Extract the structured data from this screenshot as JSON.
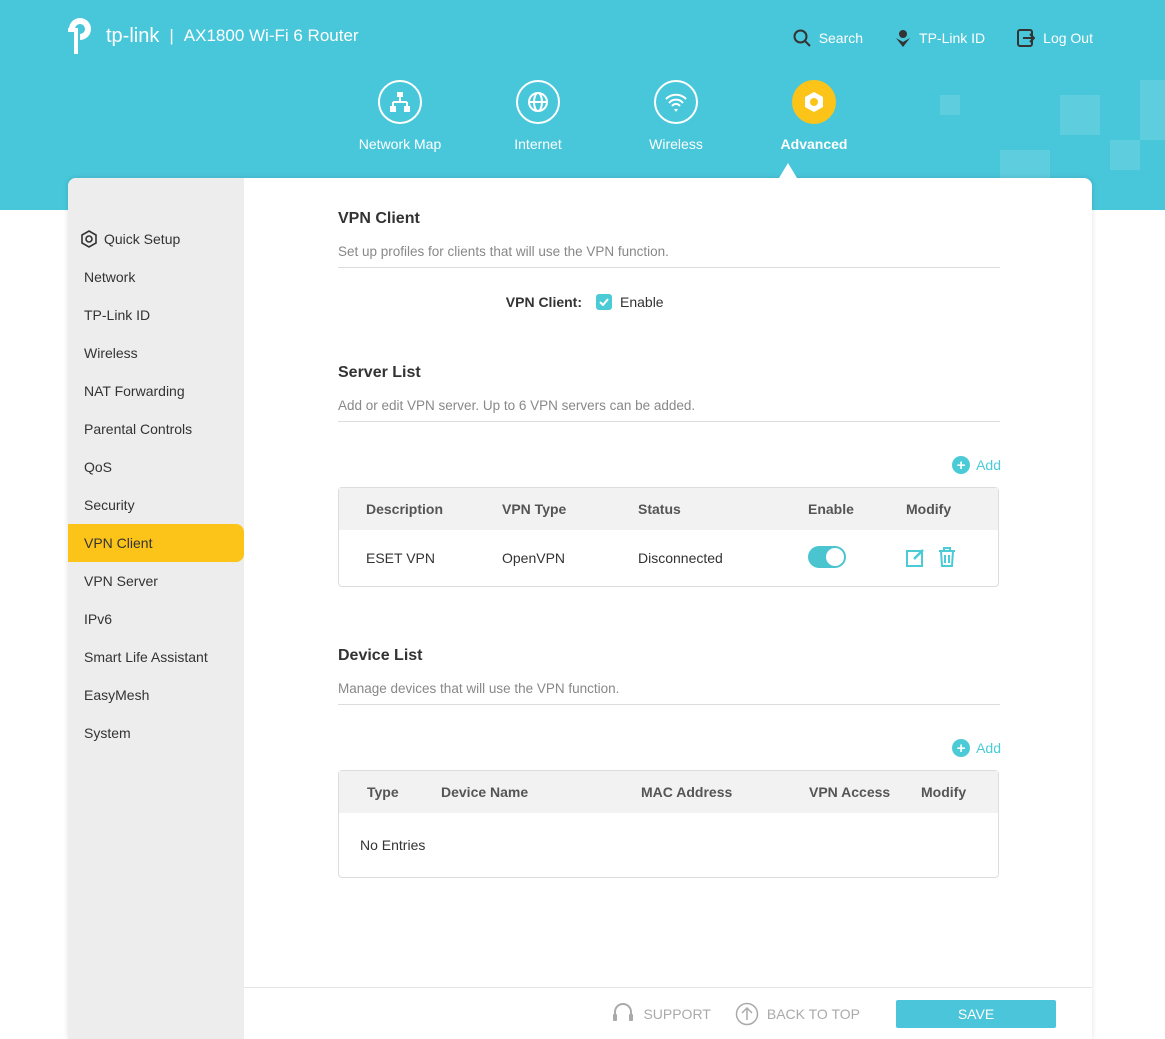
{
  "header": {
    "brand": "tp-link",
    "model": "AX1800 Wi-Fi 6 Router",
    "search": "Search",
    "tplink_id": "TP-Link ID",
    "logout": "Log Out"
  },
  "mainnav": [
    {
      "label": "Network Map",
      "icon": "network-map-icon"
    },
    {
      "label": "Internet",
      "icon": "globe-icon"
    },
    {
      "label": "Wireless",
      "icon": "wifi-icon"
    },
    {
      "label": "Advanced",
      "icon": "gear-icon",
      "active": true
    }
  ],
  "sidebar": {
    "items": [
      "Quick Setup",
      "Network",
      "TP-Link ID",
      "Wireless",
      "NAT Forwarding",
      "Parental Controls",
      "QoS",
      "Security",
      "VPN Client",
      "VPN Server",
      "IPv6",
      "Smart Life Assistant",
      "EasyMesh",
      "System"
    ],
    "active": "VPN Client"
  },
  "vpn_client": {
    "title": "VPN Client",
    "desc": "Set up profiles for clients that will use the VPN function.",
    "label": "VPN Client:",
    "enable_label": "Enable",
    "enabled": true
  },
  "server_list": {
    "title": "Server List",
    "desc": "Add or edit VPN server. Up to 6 VPN servers can be added.",
    "add": "Add",
    "columns": [
      "Description",
      "VPN Type",
      "Status",
      "Enable",
      "Modify"
    ],
    "rows": [
      {
        "description": "ESET VPN",
        "type": "OpenVPN",
        "status": "Disconnected",
        "enabled": true
      }
    ]
  },
  "device_list": {
    "title": "Device List",
    "desc": "Manage devices that will use the VPN function.",
    "add": "Add",
    "columns": [
      "Type",
      "Device Name",
      "MAC Address",
      "VPN Access",
      "Modify"
    ],
    "empty": "No Entries"
  },
  "footer": {
    "support": "SUPPORT",
    "back_to_top": "BACK TO TOP",
    "save": "SAVE"
  },
  "colors": {
    "header": "#48c6da",
    "accent": "#4acbd6",
    "active": "#fcc419"
  }
}
